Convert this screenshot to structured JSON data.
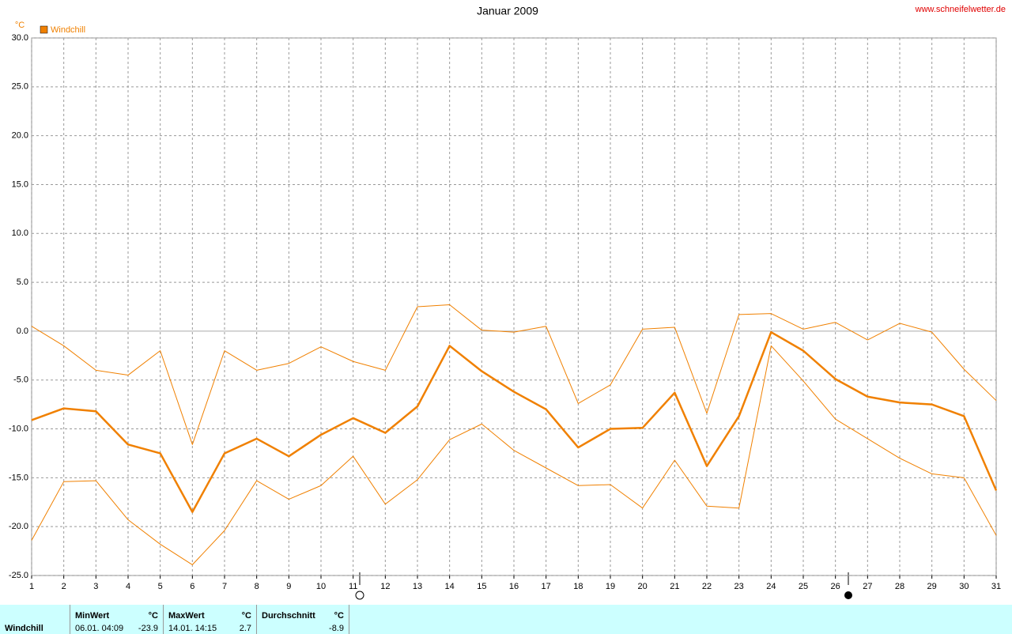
{
  "chart_data": {
    "type": "line",
    "title": "Januar 2009",
    "source": "www.schneifelwetter.de",
    "y_unit": "°C",
    "x": [
      1,
      2,
      3,
      4,
      5,
      6,
      7,
      8,
      9,
      10,
      11,
      12,
      13,
      14,
      15,
      16,
      17,
      18,
      19,
      20,
      21,
      22,
      23,
      24,
      25,
      26,
      27,
      28,
      29,
      30,
      31
    ],
    "series": [
      {
        "name": "Windchill",
        "color": "#f08000",
        "linewidth": 2.5,
        "values": [
          -9.1,
          -7.9,
          -8.2,
          -11.6,
          -12.5,
          -18.5,
          -12.5,
          -11.0,
          -12.8,
          -10.6,
          -8.9,
          -10.4,
          -7.7,
          -1.5,
          -4.1,
          -6.2,
          -8.0,
          -11.9,
          -10.0,
          -9.9,
          -6.3,
          -13.8,
          -8.7,
          -0.1,
          -2.0,
          -4.9,
          -6.7,
          -7.3,
          -7.5,
          -8.7,
          -16.3
        ]
      },
      {
        "color": "#f08000",
        "linewidth": 1,
        "values": [
          0.5,
          -1.5,
          -4.0,
          -4.5,
          -2.0,
          -11.6,
          -2.0,
          -4.0,
          -3.3,
          -1.6,
          -3.1,
          -4.0,
          2.5,
          2.7,
          0.1,
          -0.1,
          0.5,
          -7.4,
          -5.5,
          0.2,
          0.4,
          -8.4,
          1.7,
          1.8,
          0.2,
          0.9,
          -0.9,
          0.8,
          -0.1,
          -3.9,
          -7.1
        ]
      },
      {
        "color": "#f08000",
        "linewidth": 1,
        "values": [
          -21.4,
          -15.4,
          -15.3,
          -19.3,
          -21.8,
          -23.9,
          -20.4,
          -15.3,
          -17.2,
          -15.8,
          -12.8,
          -17.7,
          -15.2,
          -11.1,
          -9.5,
          -12.2,
          -14.0,
          -15.8,
          -15.7,
          -18.1,
          -13.2,
          -17.9,
          -18.1,
          -1.5,
          -5.1,
          -9.0,
          -11.0,
          -13.0,
          -14.6,
          -15.0,
          -20.9
        ]
      }
    ],
    "xlim": [
      1,
      31
    ],
    "xticks": [
      1,
      2,
      3,
      4,
      5,
      6,
      7,
      8,
      9,
      10,
      11,
      12,
      13,
      14,
      15,
      16,
      17,
      18,
      19,
      20,
      21,
      22,
      23,
      24,
      25,
      26,
      27,
      28,
      29,
      30,
      31
    ],
    "ylim": [
      -25,
      30
    ],
    "yticks": [
      {
        "value": -25,
        "label": "-25.0"
      },
      {
        "value": -20,
        "label": "-20.0"
      },
      {
        "value": -15,
        "label": "-15.0"
      },
      {
        "value": -10,
        "label": "-10.0"
      },
      {
        "value": -5,
        "label": "-5.0"
      },
      {
        "value": 0,
        "label": "0.0"
      },
      {
        "value": 5,
        "label": "5.0"
      },
      {
        "value": 10,
        "label": "10.0"
      },
      {
        "value": 15,
        "label": "15.0"
      },
      {
        "value": 20,
        "label": "20.0"
      },
      {
        "value": 25,
        "label": "25.0"
      },
      {
        "value": 30,
        "label": "30.0"
      }
    ],
    "grid": true,
    "legend": "top-left"
  },
  "summary": {
    "label": "Windchill",
    "min": {
      "title": "MinWert",
      "unit": "°C",
      "time": "06.01.  04:09",
      "value": -23.9
    },
    "max": {
      "title": "MaxWert",
      "unit": "°C",
      "time": "14.01.  14:15",
      "value": 2.7
    },
    "avg": {
      "title": "Durchschnitt",
      "unit": "°C",
      "value": -8.9
    }
  }
}
